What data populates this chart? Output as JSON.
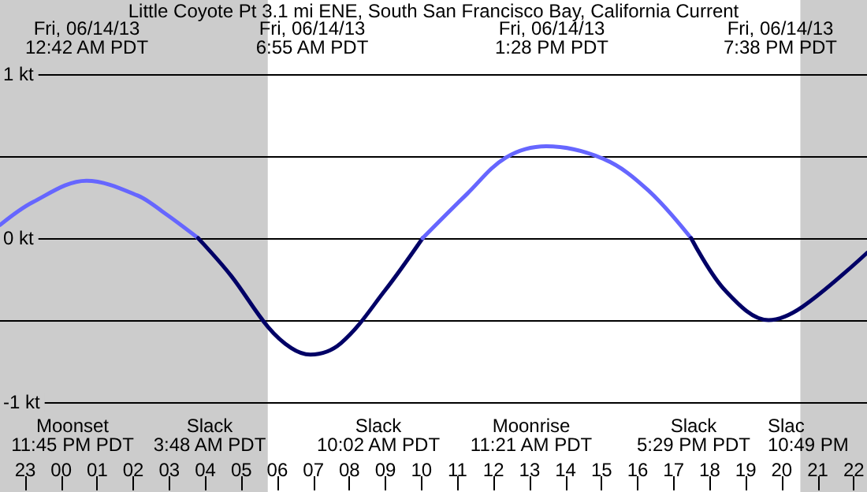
{
  "chart_data": {
    "type": "line",
    "title": "Little Coyote Pt 3.1 mi ENE, South San Francisco Bay, California Current",
    "xlim": [
      "--06-13T22:18",
      "--06-14T22:22"
    ],
    "xticks": [
      {
        "value": "--06-13T23:00",
        "label": "23"
      },
      {
        "value": "--06-14T00:00",
        "label": "00"
      },
      {
        "value": "--06-14T01:00",
        "label": "01"
      },
      {
        "value": "--06-14T02:00",
        "label": "02"
      },
      {
        "value": "--06-14T03:00",
        "label": "03"
      },
      {
        "value": "--06-14T04:00",
        "label": "04"
      },
      {
        "value": "--06-14T05:00",
        "label": "05"
      },
      {
        "value": "--06-14T06:00",
        "label": "06"
      },
      {
        "value": "--06-14T07:00",
        "label": "07"
      },
      {
        "value": "--06-14T08:00",
        "label": "08"
      },
      {
        "value": "--06-14T09:00",
        "label": "09"
      },
      {
        "value": "--06-14T10:00",
        "label": "10"
      },
      {
        "value": "--06-14T11:00",
        "label": "11"
      },
      {
        "value": "--06-14T12:00",
        "label": "12"
      },
      {
        "value": "--06-14T13:00",
        "label": "13"
      },
      {
        "value": "--06-14T14:00",
        "label": "14"
      },
      {
        "value": "--06-14T15:00",
        "label": "15"
      },
      {
        "value": "--06-14T16:00",
        "label": "16"
      },
      {
        "value": "--06-14T17:00",
        "label": "17"
      },
      {
        "value": "--06-14T18:00",
        "label": "18"
      },
      {
        "value": "--06-14T19:00",
        "label": "19"
      },
      {
        "value": "--06-14T20:00",
        "label": "20"
      },
      {
        "value": "--06-14T21:00",
        "label": "21"
      },
      {
        "value": "--06-14T22:00",
        "label": "22"
      }
    ],
    "ylim": [
      -1,
      1
    ],
    "yticks": [
      {
        "value": 1,
        "label": "1 kt"
      },
      {
        "value": 0,
        "label": "0 kt"
      },
      {
        "value": -1,
        "label": "-1 kt"
      }
    ],
    "grid": "y",
    "series": [
      {
        "color": "#6666ff",
        "x": [
          "--06-13T22:18",
          "--06-13T23:13",
          "--06-14T00:42",
          "--06-14T02:07",
          "--06-14T02:53",
          "--06-14T03:48"
        ],
        "values": [
          0.08,
          0.22,
          0.35,
          0.26,
          0.15,
          0
        ]
      },
      {
        "color": "#000066",
        "x": [
          "--06-14T03:48",
          "--06-14T04:43",
          "--06-14T05:44",
          "--06-14T06:23",
          "--06-14T06:55",
          "--06-14T07:46",
          "--06-14T08:59",
          "--06-14T10:02"
        ],
        "values": [
          0,
          -0.23,
          -0.54,
          -0.67,
          -0.71,
          -0.64,
          -0.32,
          0
        ]
      },
      {
        "color": "#6666ff",
        "x": [
          "--06-14T10:02",
          "--06-14T11:16",
          "--06-14T12:20",
          "--06-14T13:28",
          "--06-14T15:05",
          "--06-14T16:18",
          "--06-14T17:29"
        ],
        "values": [
          0,
          0.27,
          0.49,
          0.56,
          0.48,
          0.29,
          0
        ]
      },
      {
        "color": "#000066",
        "x": [
          "--06-14T17:29",
          "--06-14T18:26",
          "--06-14T19:38",
          "--06-14T20:34",
          "--06-14T22:22"
        ],
        "values": [
          0,
          -0.32,
          -0.5,
          -0.42,
          -0.09
        ]
      }
    ],
    "bands": [
      {
        "axis": "x",
        "from": "--06-13T22:18",
        "to": "--06-14T05:44",
        "color": "#cccccc"
      },
      {
        "axis": "x",
        "from": "--06-14T20:31",
        "to": "--06-14T22:22",
        "color": "#cccccc"
      }
    ],
    "annotations": [
      "Fri, 06/14/13\n12:42 AM PDT",
      "Fri, 06/14/13\n6:55 AM PDT",
      "Fri, 06/14/13\n1:28 PM PDT",
      "Fri, 06/14/13\n7:38 PM PDT",
      "Moonset\n11:45 PM PDT",
      "Slack\n3:48 AM PDT",
      "Slack\n10:02 AM PDT",
      "Moonrise\n11:21 AM PDT",
      "Slack\n5:29 PM PDT",
      "Slac\n10:49 PM"
    ]
  }
}
